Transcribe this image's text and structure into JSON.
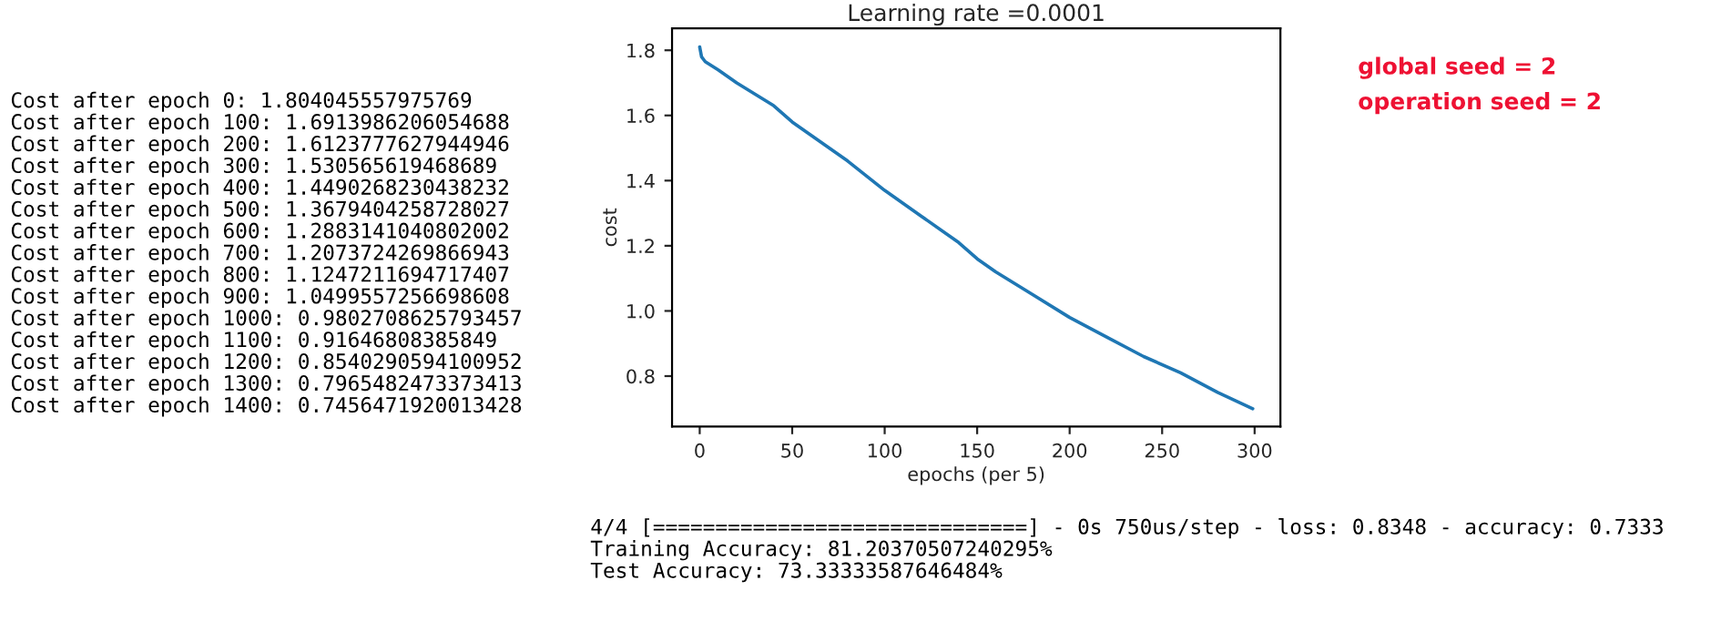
{
  "chart_data": {
    "type": "line",
    "title": "Learning rate =0.0001",
    "xlabel": "epochs (per 5)",
    "ylabel": "cost",
    "x": [
      0,
      1,
      3,
      10,
      20,
      40,
      50,
      60,
      80,
      100,
      120,
      140,
      150,
      160,
      180,
      200,
      220,
      240,
      260,
      280,
      299
    ],
    "series": [
      {
        "color": "#1f77b4",
        "values": [
          1.81,
          1.78,
          1.765,
          1.74,
          1.7,
          1.63,
          1.58,
          1.54,
          1.46,
          1.37,
          1.29,
          1.21,
          1.16,
          1.12,
          1.05,
          0.98,
          0.92,
          0.86,
          0.81,
          0.75,
          0.7
        ]
      }
    ],
    "xlim": [
      -14.95,
      313.95
    ],
    "ylim": [
      0.645,
      1.867
    ],
    "xticks": [
      0,
      50,
      100,
      150,
      200,
      250,
      300
    ],
    "yticks": [
      {
        "value": 0.8,
        "label": "0.8"
      },
      {
        "value": 1.0,
        "label": "1.0"
      },
      {
        "value": 1.2,
        "label": "1.2"
      },
      {
        "value": 1.4,
        "label": "1.4"
      },
      {
        "value": 1.6,
        "label": "1.6"
      },
      {
        "value": 1.8,
        "label": "1.8"
      }
    ],
    "grid": false,
    "legend": false,
    "annotations": [
      "Cost after epoch 0: 1.804045557975769\nCost after epoch 100: 1.6913986206054688\nCost after epoch 200: 1.6123777627944946\nCost after epoch 300: 1.530565619468689\nCost after epoch 400: 1.4490268230438232\nCost after epoch 500: 1.3679404258728027\nCost after epoch 600: 1.2883141040802002\nCost after epoch 700: 1.2073724269866943\nCost after epoch 800: 1.1247211694717407\nCost after epoch 900: 1.0499557256698608\nCost after epoch 1000: 0.9802708625793457\nCost after epoch 1100: 0.91646808385849\nCost after epoch 1200: 0.8540290594100952\nCost after epoch 1300: 0.7965482473373413\nCost after epoch 1400: 0.7456471920013428",
      "global seed = 2\noperation seed = 2",
      "4/4 [==============================] - 0s 750us/step - loss: 0.8348 - accuracy: 0.7333\nTraining Accuracy: 81.20370507240295%\nTest Accuracy: 73.33333587646484%"
    ]
  }
}
